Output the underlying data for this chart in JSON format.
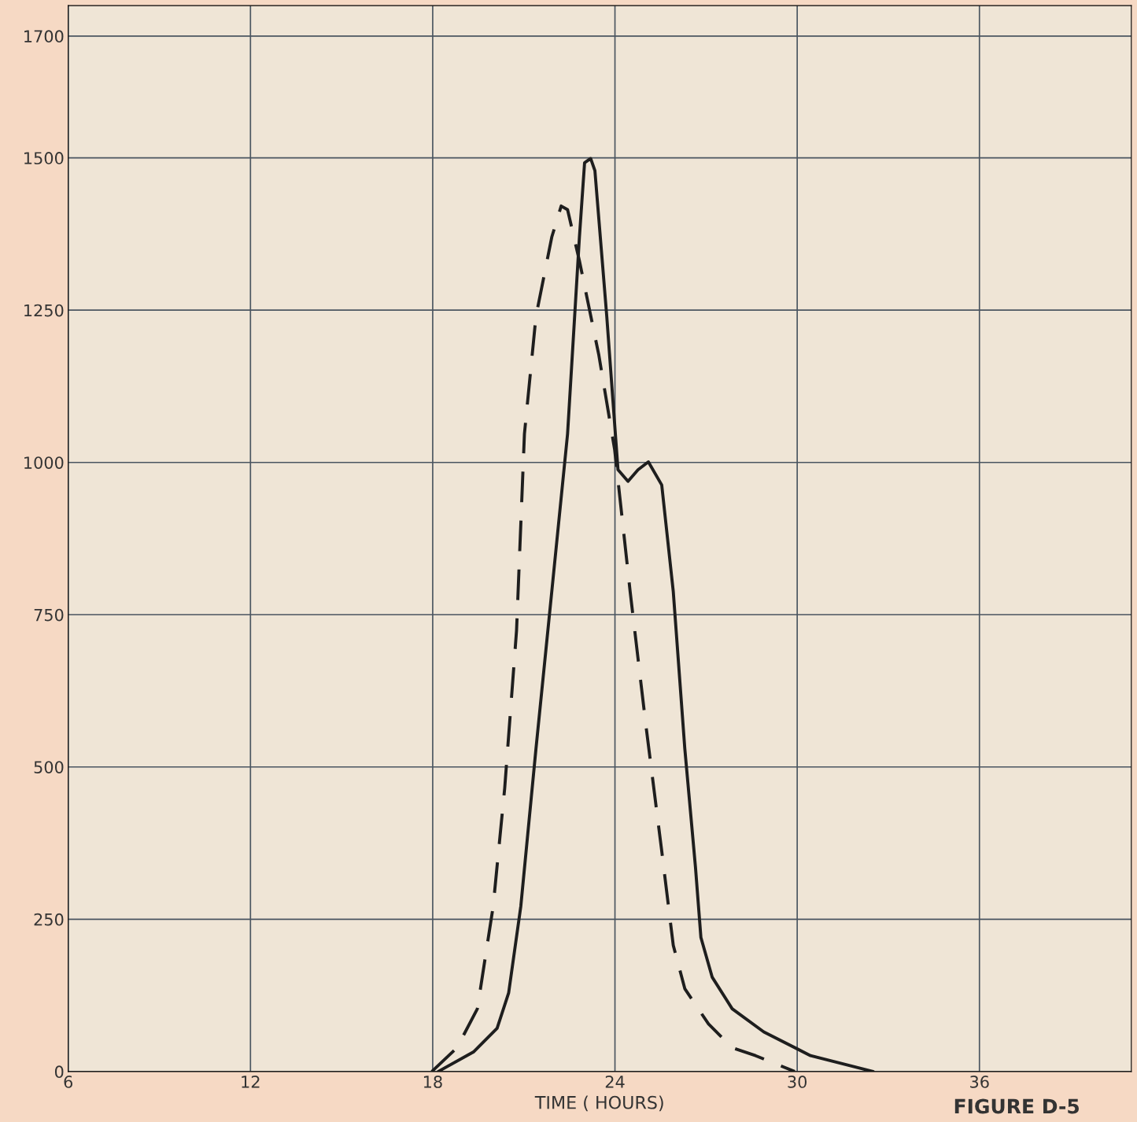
{
  "chart_data": {
    "type": "line",
    "xlabel": "TIME ( HOURS)",
    "annotations": [
      "FIGURE D-5"
    ],
    "xlim": [
      6,
      41
    ],
    "xticks": [
      6,
      12,
      18,
      24,
      30,
      36
    ],
    "ylim": [
      0,
      1750
    ],
    "yticks": [
      0,
      250,
      500,
      750,
      1000,
      1250,
      1500,
      1700
    ],
    "grid": true,
    "legend": false,
    "marker": "none",
    "series": [
      {
        "color": "#1e1e1e",
        "line_style": "solid",
        "x": [
          18.18,
          19.34,
          20.12,
          20.5,
          20.9,
          21.4,
          21.92,
          22.44,
          22.83,
          23.0,
          23.2,
          23.34,
          23.73,
          24.1,
          24.43,
          24.76,
          25.1,
          25.54,
          25.92,
          26.3,
          26.65,
          26.83,
          27.2,
          27.86,
          28.9,
          30.44,
          32.5
        ],
        "values": [
          0,
          32,
          71,
          129,
          271,
          530,
          788,
          1047,
          1370,
          1492,
          1499,
          1479,
          1240,
          988,
          969,
          988,
          1001,
          963,
          788,
          530,
          336,
          220,
          155,
          103,
          65,
          26,
          0
        ]
      },
      {
        "color": "#1e1e1e",
        "line_style": "dashed",
        "x": [
          17.97,
          18.8,
          19.47,
          19.99,
          20.37,
          20.76,
          21.02,
          21.4,
          21.92,
          22.23,
          22.44,
          22.83,
          23.47,
          23.99,
          24.5,
          25.02,
          25.54,
          25.92,
          26.3,
          27.08,
          27.86,
          28.63,
          29.92
        ],
        "values": [
          0,
          39,
          103,
          271,
          465,
          724,
          1047,
          1240,
          1370,
          1421,
          1415,
          1331,
          1176,
          1021,
          788,
          568,
          362,
          207,
          136,
          78,
          39,
          26,
          0
        ]
      }
    ]
  }
}
